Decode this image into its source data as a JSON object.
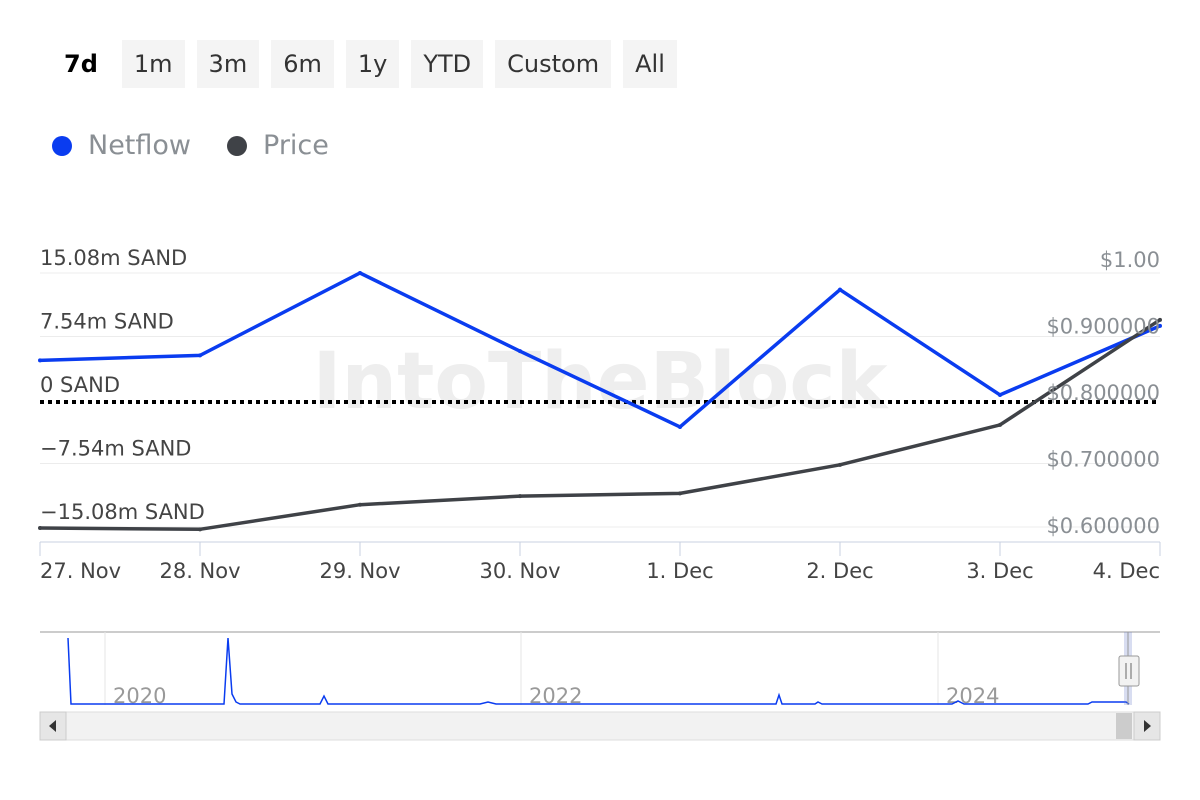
{
  "range_selector": {
    "buttons": [
      "7d",
      "1m",
      "3m",
      "6m",
      "1y",
      "YTD",
      "Custom",
      "All"
    ],
    "active": "7d"
  },
  "legend": [
    {
      "name": "Netflow",
      "color": "#0a3cf0"
    },
    {
      "name": "Price",
      "color": "#3f4247"
    }
  ],
  "watermark": "IntoTheBlock",
  "chart_data": {
    "type": "line",
    "x": [
      "27. Nov",
      "28. Nov",
      "29. Nov",
      "30. Nov",
      "1. Dec",
      "2. Dec",
      "3. Dec",
      "4. Dec"
    ],
    "series": [
      {
        "name": "Netflow",
        "axis": "left",
        "color": "#0a3cf0",
        "values": [
          4.7,
          5.3,
          15.08,
          5.8,
          -3.2,
          13.1,
          0.6,
          8.8
        ]
      },
      {
        "name": "Price",
        "axis": "right",
        "color": "#3f4247",
        "values": [
          0.597,
          0.595,
          0.632,
          0.645,
          0.649,
          0.692,
          0.752,
          0.91
        ]
      }
    ],
    "left_axis": {
      "ticks": [
        15.08,
        7.54,
        0,
        -7.54,
        -15.08
      ],
      "tick_labels": [
        "15.08m SAND",
        "7.54m SAND",
        "0 SAND",
        "−7.54m SAND",
        "−15.08m SAND"
      ],
      "range": [
        -15.08,
        15.08
      ]
    },
    "right_axis": {
      "ticks": [
        1.0,
        0.9,
        0.8,
        0.7,
        0.6
      ],
      "tick_labels": [
        "$1.00",
        "$0.900000",
        "$0.800000",
        "$0.700000",
        "$0.600000"
      ],
      "range": [
        0.6,
        1.0
      ]
    },
    "zero_line": true,
    "grid": true
  },
  "navigator": {
    "labels": [
      "2020",
      "2022",
      "2024"
    ]
  }
}
